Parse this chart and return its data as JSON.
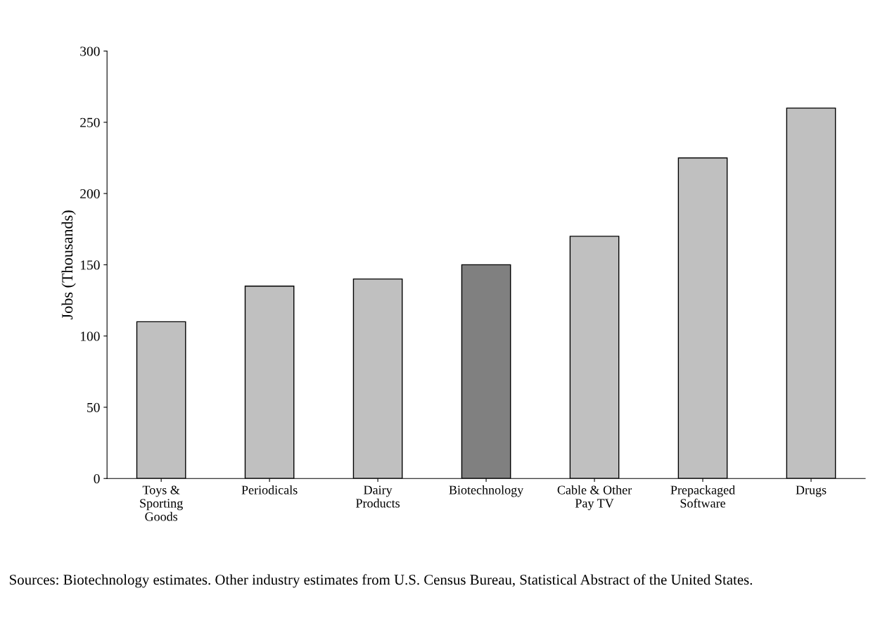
{
  "chart_data": {
    "type": "bar",
    "ylabel": "Jobs (Thousands)",
    "categories": [
      "Toys &\nSporting\nGoods",
      "Periodicals",
      "Dairy\nProducts",
      "Biotechnology",
      "Cable & Other\nPay TV",
      "Prepackaged\nSoftware",
      "Drugs"
    ],
    "values": [
      110,
      135,
      140,
      150,
      170,
      225,
      260
    ],
    "colors": [
      "#c0c0c0",
      "#c0c0c0",
      "#c0c0c0",
      "#808080",
      "#c0c0c0",
      "#c0c0c0",
      "#c0c0c0"
    ],
    "ylim": [
      0,
      300
    ],
    "yticks": [
      0,
      50,
      100,
      150,
      200,
      250,
      300
    ],
    "grid": false,
    "annotations": [
      "Sources: Biotechnology estimates. Other industry estimates from U.S. Census Bureau, Statistical Abstract of the United States."
    ]
  }
}
